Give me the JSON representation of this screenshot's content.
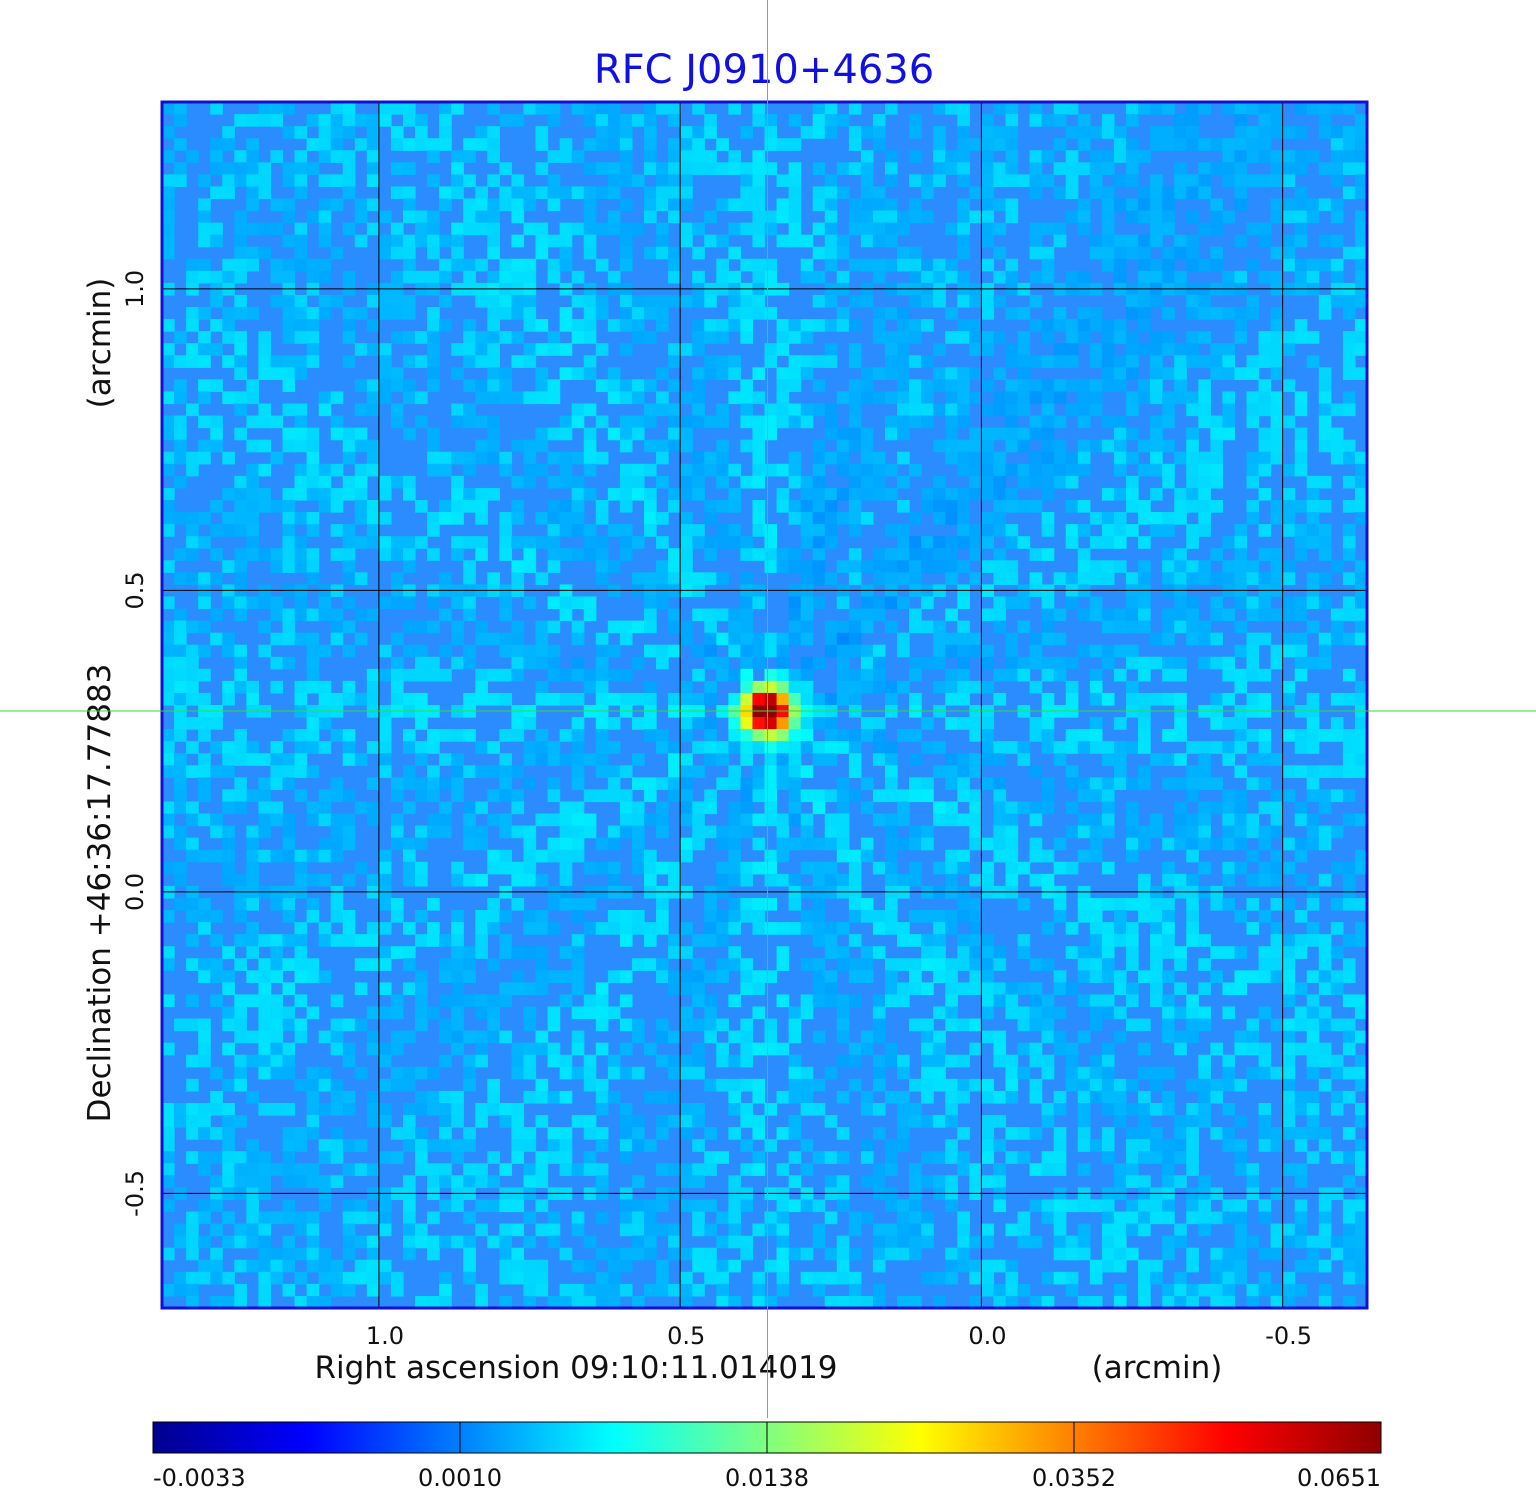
{
  "chart_data": {
    "type": "heatmap",
    "title": "RFC J0910+4636",
    "xlabel": "Right ascension  09:10:11.014019",
    "xunit": "(arcmin)",
    "ylabel": "Declination  +46:36:17.77883",
    "yunit": "(arcmin)",
    "x_ticks": [
      "1.0",
      "0.5",
      "0.0",
      "-0.5"
    ],
    "y_ticks": [
      "1.0",
      "0.5",
      "0.0",
      "-0.5"
    ],
    "xlim": [
      1.36,
      -0.64
    ],
    "ylim": [
      -0.69,
      1.31
    ],
    "grid": true,
    "crosshair": {
      "x": 0.355,
      "y": 0.3
    },
    "peak": {
      "x": 0.355,
      "y": 0.3,
      "value": 0.0651
    },
    "colorbar": {
      "ticks": [
        "-0.0033",
        "0.0010",
        "0.0138",
        "0.0352",
        "0.0651"
      ],
      "min": -0.0033,
      "max": 0.0651,
      "colormap": "jet"
    },
    "colors": {
      "background_field": "#2a8cff",
      "frame": "#1010d0",
      "grid": "#000000",
      "crosshair": "#33dd33",
      "title": "#1010e0"
    }
  }
}
